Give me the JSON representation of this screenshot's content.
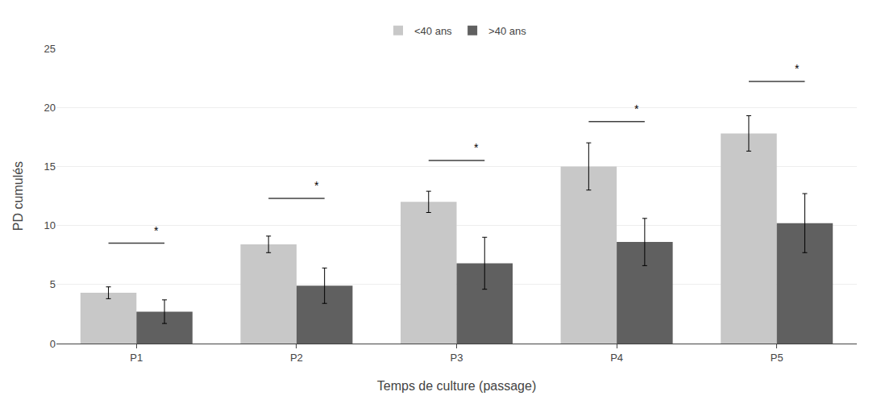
{
  "chart_data": {
    "type": "bar",
    "categories": [
      "P1",
      "P2",
      "P3",
      "P4",
      "P5"
    ],
    "series": [
      {
        "name": "<40 ans",
        "color": "#c8c8c8",
        "values": [
          4.3,
          8.4,
          12.0,
          15.0,
          17.8
        ],
        "errors": [
          0.5,
          0.7,
          0.9,
          2.0,
          1.5
        ]
      },
      {
        "name": ">40 ans",
        "color": "#606060",
        "values": [
          2.7,
          4.9,
          6.8,
          8.6,
          10.2
        ],
        "errors": [
          1.0,
          1.5,
          2.2,
          2.0,
          2.5
        ]
      }
    ],
    "xlabel": "Temps de culture (passage)",
    "ylabel": "PD cumulés",
    "ylim": [
      0,
      25
    ],
    "yticks": [
      0,
      5,
      10,
      15,
      20,
      25
    ],
    "grid": true,
    "legend": "top",
    "brackets": [
      {
        "category": "P1",
        "y": 8.5,
        "text": "*",
        "text_y": 8.9
      },
      {
        "category": "P2",
        "y": 12.3,
        "text": "*",
        "text_y": 12.7
      },
      {
        "category": "P3",
        "y": 15.5,
        "text": "*",
        "text_y": 15.9
      },
      {
        "category": "P4",
        "y": 18.8,
        "text": "*",
        "text_y": 19.2
      },
      {
        "category": "P5",
        "y": 22.2,
        "text": "*",
        "text_y": 22.6
      }
    ]
  }
}
